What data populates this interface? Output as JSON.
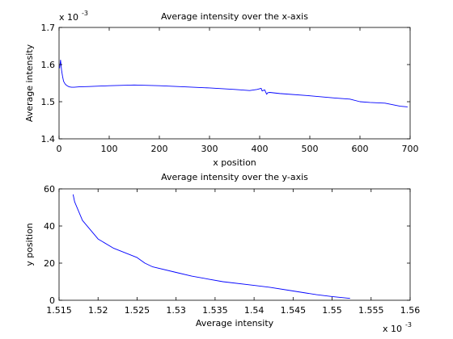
{
  "chart_data": [
    {
      "type": "line",
      "title": "Average intensity over the x-axis",
      "xlabel": "x position",
      "ylabel": "Average intensity",
      "xlim": [
        0,
        700
      ],
      "ylim": [
        0.0014,
        0.0017
      ],
      "x_ticks": [
        "0",
        "100",
        "200",
        "300",
        "400",
        "500",
        "600",
        "700"
      ],
      "y_ticks": [
        "1.4",
        "1.5",
        "1.6",
        "1.7"
      ],
      "y_exponent": "x 10",
      "y_exponent_power": "-3",
      "grid": false,
      "color": "#0000ff",
      "series": [
        {
          "x": [
            1,
            3,
            5,
            7,
            9,
            12,
            15,
            20,
            25,
            30,
            40,
            60,
            100,
            150,
            200,
            250,
            300,
            350,
            380,
            395,
            403,
            405,
            410,
            414,
            416,
            420,
            440,
            500,
            550,
            580,
            600,
            620,
            650,
            680,
            695
          ],
          "y": [
            0.00159,
            0.001612,
            0.001585,
            0.001568,
            0.001555,
            0.001548,
            0.001544,
            0.00154,
            0.001539,
            0.001539,
            0.00154,
            0.001541,
            0.001543,
            0.001545,
            0.001543,
            0.00154,
            0.001537,
            0.001533,
            0.00153,
            0.001533,
            0.001536,
            0.001529,
            0.001532,
            0.00152,
            0.001524,
            0.001525,
            0.001522,
            0.001516,
            0.00151,
            0.001507,
            0.0015,
            0.001498,
            0.001496,
            0.001488,
            0.001486
          ]
        }
      ]
    },
    {
      "type": "line",
      "title": "Average intensity over the y-axis",
      "xlabel": "Average intensity",
      "ylabel": "y position",
      "xlim": [
        0.001515,
        0.00156
      ],
      "ylim": [
        0,
        60
      ],
      "x_ticks": [
        "1.515",
        "1.52",
        "1.525",
        "1.53",
        "1.535",
        "1.54",
        "1.545",
        "1.55",
        "1.555",
        "1.56"
      ],
      "y_ticks": [
        "0",
        "20",
        "40",
        "60"
      ],
      "x_exponent": "x 10",
      "x_exponent_power": "-3",
      "grid": false,
      "color": "#0000ff",
      "series": [
        {
          "x": [
            0.0015523,
            0.00155,
            0.001548,
            0.001545,
            0.001542,
            0.00154,
            0.001536,
            0.001532,
            0.00153,
            0.001527,
            0.001526,
            0.001525,
            0.001522,
            0.00152,
            0.001519,
            0.001518,
            0.0015175,
            0.001517,
            0.0015168
          ],
          "y": [
            1,
            2,
            3,
            5,
            7,
            8,
            10,
            13,
            15,
            18,
            20,
            23,
            28,
            33,
            38,
            43,
            48,
            53,
            57
          ]
        }
      ]
    }
  ]
}
